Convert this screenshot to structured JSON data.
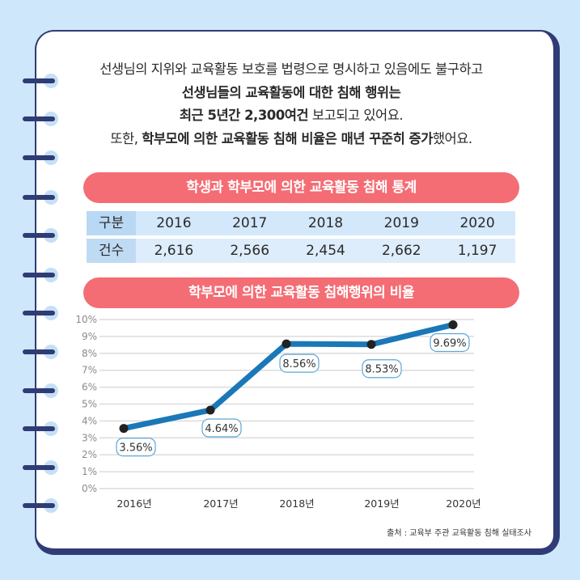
{
  "intro": {
    "line1": "선생님의 지위와 교육활동 보호를 법령으로 명시하고 있음에도 불구하고",
    "line2_bold": "선생님들의 교육활동에 대한 침해 행위는",
    "line3_bold": "최근 5년간 2,300여건",
    "line3_rest": " 보고되고 있어요.",
    "line4_pre": "또한, ",
    "line4_bold": "학부모에 의한 교육활동 침해 비율은 매년 꾸준히 증가",
    "line4_rest": "했어요."
  },
  "table": {
    "title": "학생과 학부모에 의한 교육활동 침해 통계",
    "header_label": "구분",
    "years": [
      "2016",
      "2017",
      "2018",
      "2019",
      "2020"
    ],
    "row_label": "건수",
    "counts": [
      "2,616",
      "2,566",
      "2,454",
      "2,662",
      "1,197"
    ]
  },
  "chart_data": {
    "type": "line",
    "title": "학부모에 의한 교육활동 침해행위의 비율",
    "categories": [
      "2016년",
      "2017년",
      "2018년",
      "2019년",
      "2020년"
    ],
    "values": [
      3.56,
      4.64,
      8.56,
      8.53,
      9.69
    ],
    "data_labels": [
      "3.56%",
      "4.64%",
      "8.56%",
      "8.53%",
      "9.69%"
    ],
    "yticks": [
      "0%",
      "1%",
      "2%",
      "3%",
      "4%",
      "5%",
      "6%",
      "7%",
      "8%",
      "9%",
      "10%"
    ],
    "ylim": [
      0,
      10
    ],
    "grid": true,
    "line_color": "#1a78b8",
    "marker_color": "#222222"
  },
  "source": "출처 : 교육부 주관 교육활동 침해 실태조사"
}
